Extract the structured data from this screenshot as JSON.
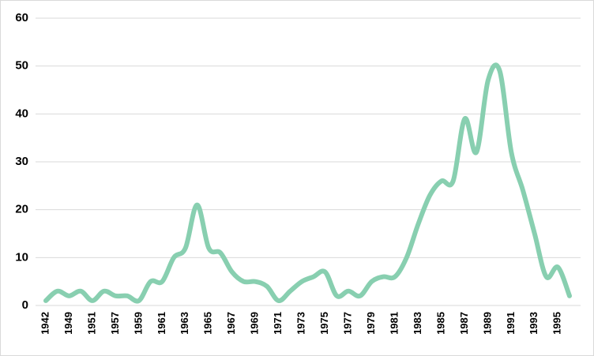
{
  "chart_data": {
    "type": "line",
    "categories": [
      "1942",
      null,
      "1949",
      null,
      "1951",
      null,
      "1957",
      null,
      "1959",
      null,
      "1961",
      null,
      "1963",
      null,
      "1965",
      null,
      "1967",
      null,
      "1969",
      null,
      "1971",
      null,
      "1973",
      null,
      "1975",
      null,
      "1977",
      null,
      "1979",
      null,
      "1981",
      null,
      "1983",
      null,
      "1985",
      null,
      "1987",
      null,
      "1989",
      null,
      "1991",
      null,
      "1993",
      null,
      "1995",
      null
    ],
    "values": [
      1,
      3,
      2,
      3,
      1,
      3,
      2,
      2,
      1,
      5,
      5,
      10,
      12,
      21,
      12,
      11,
      7,
      5,
      5,
      4,
      1,
      3,
      5,
      6,
      7,
      2,
      3,
      2,
      5,
      6,
      6,
      10,
      17,
      23,
      26,
      26,
      39,
      32,
      47,
      49,
      32,
      24,
      15,
      6,
      8,
      2
    ],
    "color": "#88cfb0",
    "ylim": [
      0,
      60
    ],
    "yticks": [
      0,
      10,
      20,
      30,
      40,
      50,
      60
    ],
    "grid": true
  }
}
